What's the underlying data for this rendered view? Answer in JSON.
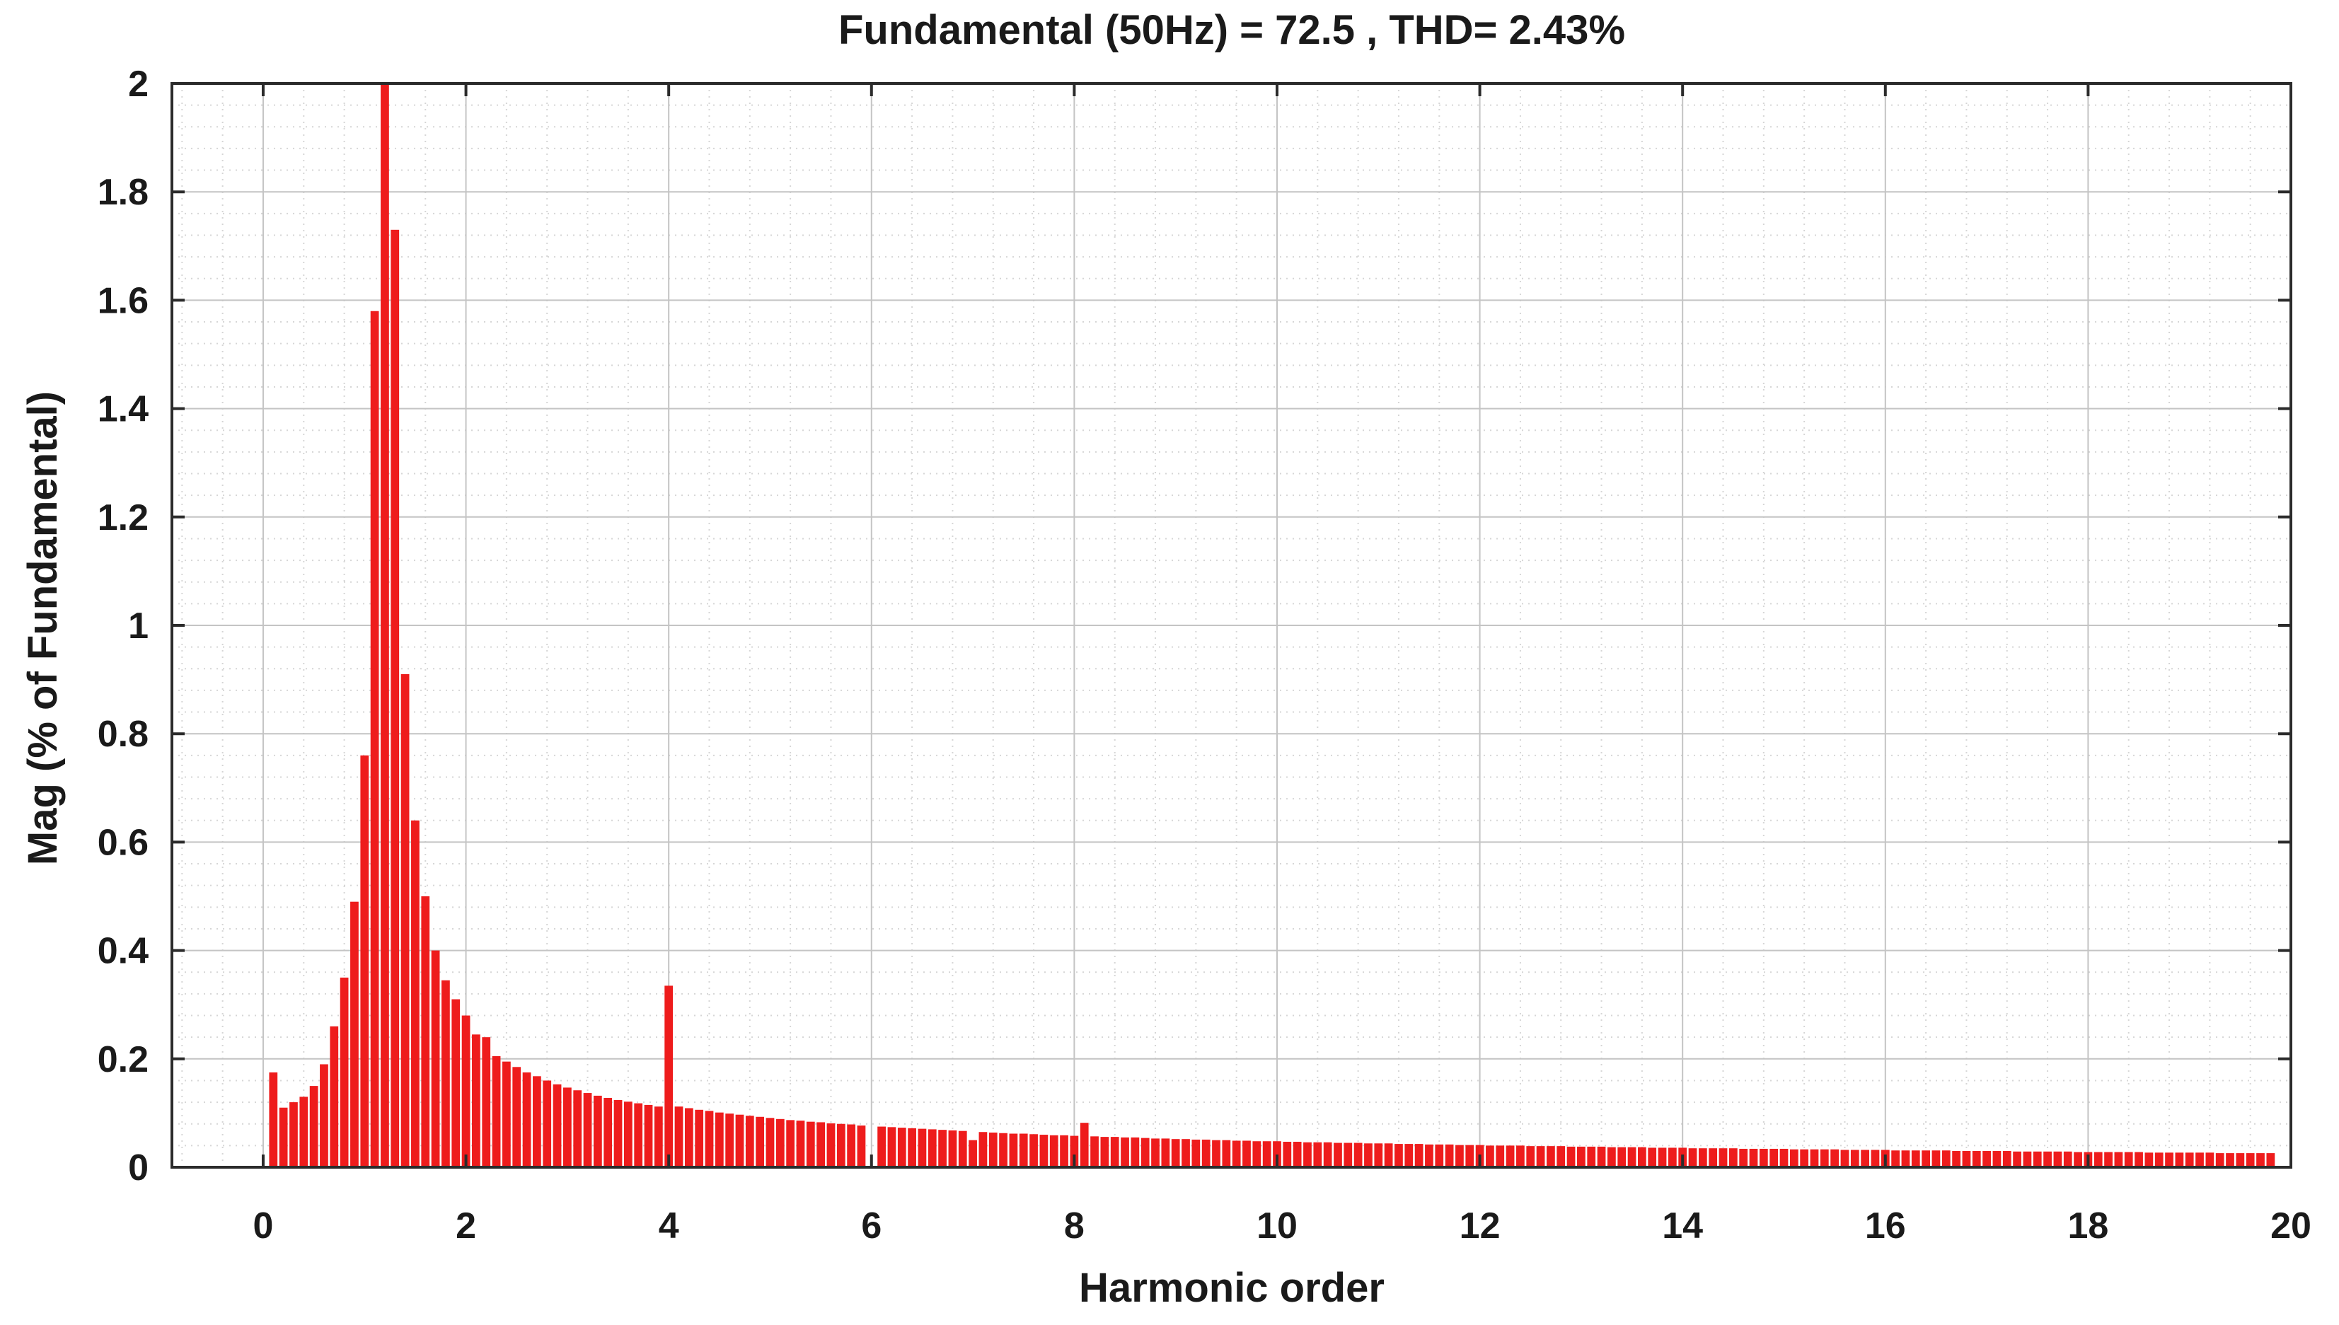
{
  "chart_data": {
    "type": "bar",
    "title": "Fundamental (50Hz) = 72.5 , THD= 2.43%",
    "xlabel": "Harmonic order",
    "ylabel": "Mag (% of Fundamental)",
    "xlim": [
      -0.9,
      20
    ],
    "ylim": [
      0,
      2
    ],
    "x_ticks": [
      "0",
      "2",
      "4",
      "6",
      "8",
      "10",
      "12",
      "14",
      "16",
      "18",
      "20"
    ],
    "y_ticks": [
      "0",
      "0.2",
      "0.4",
      "0.6",
      "0.8",
      "1",
      "1.2",
      "1.4",
      "1.6",
      "1.8",
      "2"
    ],
    "grid": true,
    "bar_color": "#ee1c1c",
    "bar_step": 0.1,
    "x_start": 0.1,
    "values": [
      0.175,
      0.11,
      0.12,
      0.13,
      0.15,
      0.19,
      0.26,
      0.35,
      0.49,
      0.76,
      1.58,
      2.0,
      1.73,
      0.91,
      0.64,
      0.5,
      0.4,
      0.345,
      0.31,
      0.28,
      0.245,
      0.24,
      0.205,
      0.195,
      0.185,
      0.175,
      0.168,
      0.16,
      0.153,
      0.147,
      0.142,
      0.137,
      0.132,
      0.128,
      0.124,
      0.121,
      0.118,
      0.115,
      0.112,
      0.335,
      0.112,
      0.109,
      0.106,
      0.104,
      0.101,
      0.099,
      0.097,
      0.095,
      0.093,
      0.091,
      0.089,
      0.087,
      0.086,
      0.084,
      0.083,
      0.081,
      0.08,
      0.079,
      0.077,
      0.0,
      0.075,
      0.074,
      0.073,
      0.072,
      0.071,
      0.07,
      0.069,
      0.068,
      0.067,
      0.05,
      0.065,
      0.064,
      0.063,
      0.062,
      0.062,
      0.061,
      0.06,
      0.059,
      0.059,
      0.058,
      0.082,
      0.057,
      0.056,
      0.056,
      0.055,
      0.055,
      0.054,
      0.053,
      0.053,
      0.052,
      0.052,
      0.051,
      0.051,
      0.05,
      0.05,
      0.049,
      0.049,
      0.048,
      0.048,
      0.048,
      0.047,
      0.047,
      0.046,
      0.046,
      0.046,
      0.045,
      0.045,
      0.045,
      0.044,
      0.044,
      0.044,
      0.043,
      0.043,
      0.043,
      0.042,
      0.042,
      0.042,
      0.041,
      0.041,
      0.041,
      0.04,
      0.04,
      0.04,
      0.04,
      0.039,
      0.039,
      0.039,
      0.039,
      0.038,
      0.038,
      0.038,
      0.038,
      0.037,
      0.037,
      0.037,
      0.037,
      0.036,
      0.036,
      0.036,
      0.036,
      0.035,
      0.035,
      0.035,
      0.035,
      0.035,
      0.034,
      0.034,
      0.034,
      0.034,
      0.034,
      0.033,
      0.033,
      0.033,
      0.033,
      0.033,
      0.032,
      0.032,
      0.032,
      0.032,
      0.032,
      0.031,
      0.031,
      0.031,
      0.031,
      0.031,
      0.031,
      0.03,
      0.03,
      0.03,
      0.03,
      0.03,
      0.03,
      0.029,
      0.029,
      0.029,
      0.029,
      0.029,
      0.029,
      0.028,
      0.028,
      0.028,
      0.028,
      0.028,
      0.028,
      0.028,
      0.027,
      0.027,
      0.027,
      0.027,
      0.027,
      0.027,
      0.027,
      0.026,
      0.026,
      0.026,
      0.026,
      0.026,
      0.026
    ]
  }
}
